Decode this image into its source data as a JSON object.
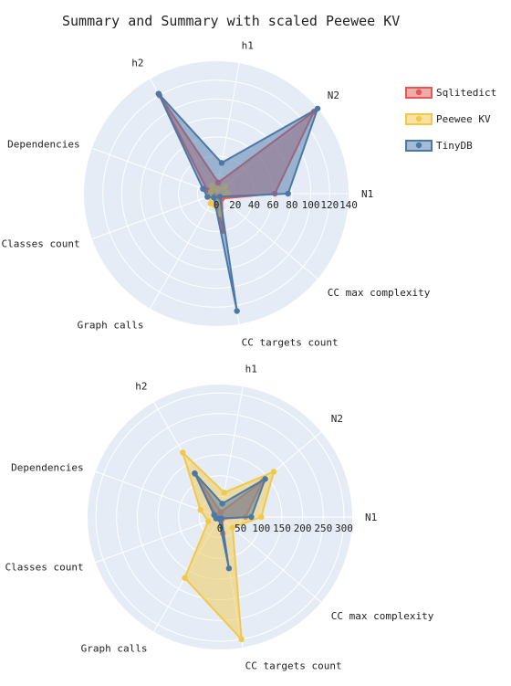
{
  "chart_data": {
    "title": "Summary and Summary with scaled Peewee KV",
    "type": "radar",
    "axes": [
      "N1",
      "N2",
      "h1",
      "h2",
      "Dependencies",
      "Classes count",
      "Graph calls",
      "CC targets count",
      "CC max complexity"
    ],
    "legend": [
      "Sqlitedict",
      "Peewee KV",
      "TinyDB"
    ],
    "colors": {
      "Sqlitedict": "#e45756",
      "Peewee KV": "#f2c84b",
      "TinyDB": "#4c78a8"
    },
    "legend_position": "top-right",
    "grid": true,
    "charts": [
      {
        "radial_range": [
          0,
          140
        ],
        "radial_ticks": [
          "0",
          "20",
          "40",
          "60",
          "80",
          "100",
          "120",
          "140"
        ],
        "series": [
          {
            "name": "Sqlitedict",
            "values": [
              62,
              135,
              12,
              120,
              10,
              4,
              3,
              40,
              8
            ]
          },
          {
            "name": "Peewee KV",
            "values": [
              12,
              12,
              5,
              10,
              6,
              8,
              12,
              22,
              5
            ]
          },
          {
            "name": "TinyDB",
            "values": [
              76,
              143,
              33,
              122,
              15,
              10,
              5,
              126,
              5
            ]
          }
        ]
      },
      {
        "radial_range": [
          0,
          320
        ],
        "radial_ticks": [
          "0",
          "50",
          "100",
          "150",
          "200",
          "250",
          "300"
        ],
        "series": [
          {
            "name": "Sqlitedict",
            "values": [
              62,
              135,
              12,
              120,
              10,
              4,
              3,
              40,
              8
            ]
          },
          {
            "name": "Peewee KV",
            "values": [
              100,
              170,
              60,
              180,
              50,
              30,
              170,
              300,
              40
            ]
          },
          {
            "name": "TinyDB",
            "values": [
              76,
              143,
              33,
              122,
              15,
              10,
              5,
              126,
              5
            ]
          }
        ]
      }
    ]
  }
}
